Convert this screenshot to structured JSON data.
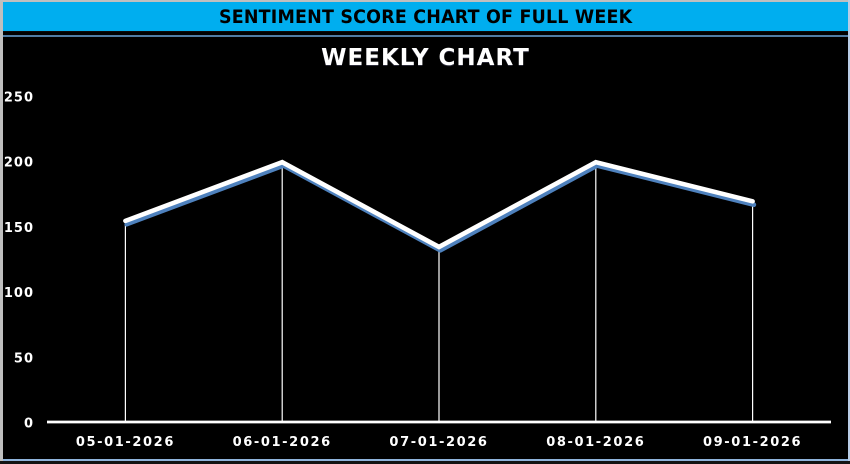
{
  "header": {
    "title": "SENTIMENT SCORE CHART OF FULL WEEK"
  },
  "colors": {
    "header_bg": "#00AEEF",
    "header_text": "#000000",
    "chart_bg": "#000000",
    "series_line": "#FFFFFF",
    "series_line_shadow": "#4E81BD",
    "axis_line": "#FFFFFF",
    "tick_label": "#FFFFFF",
    "outer_border_gray": "#BFBFBF",
    "chart_border_blue": "#8FB4DC"
  },
  "chart_data": {
    "type": "line",
    "title": "WEEKLY CHART",
    "categories": [
      "05-01-2026",
      "06-01-2026",
      "07-01-2026",
      "08-01-2026",
      "09-01-2026"
    ],
    "values": [
      155,
      200,
      135,
      200,
      170
    ],
    "xlabel": "",
    "ylabel": "",
    "ylim": [
      0,
      250
    ],
    "y_ticks": [
      0,
      50,
      100,
      150,
      200,
      250
    ],
    "grid": "off",
    "legend": "none",
    "drop_lines": true,
    "background": "black"
  }
}
